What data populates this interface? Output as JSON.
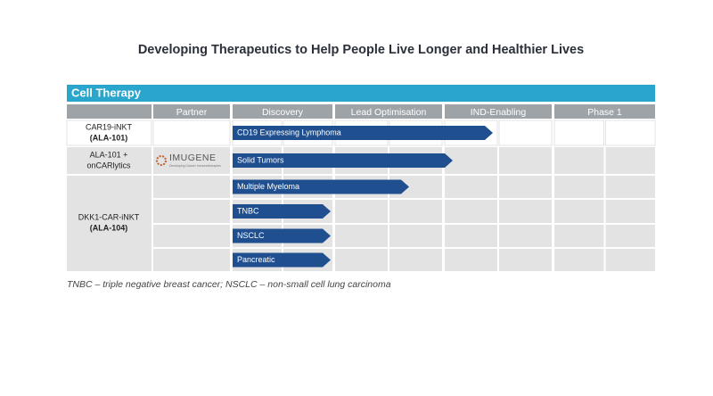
{
  "title": "Developing Therapeutics to Help People Live Longer and Healthier Lives",
  "section": "Cell Therapy",
  "columns": [
    "Partner",
    "Discovery",
    "Lead Optimisation",
    "IND-Enabling",
    "Phase 1"
  ],
  "programs": [
    {
      "lines": [
        "CAR19-iNKT",
        "(ALA-101)"
      ]
    },
    {
      "lines": [
        "ALA-101 +",
        "onCARlytics"
      ],
      "partner": {
        "name": "IMUGENE",
        "tagline": "Developing Cancer Immunotherapies"
      }
    },
    {
      "lines": [
        "DKK1-CAR-iNKT",
        "(ALA-104)"
      ]
    }
  ],
  "indications": [
    "CD19 Expressing Lymphoma",
    "Solid Tumors",
    "Multiple Myeloma",
    "TNBC",
    "NSCLC",
    "Pancreatic"
  ],
  "footnote": "TNBC – triple negative breast cancer; NSCLC – non-small cell lung carcinoma"
}
